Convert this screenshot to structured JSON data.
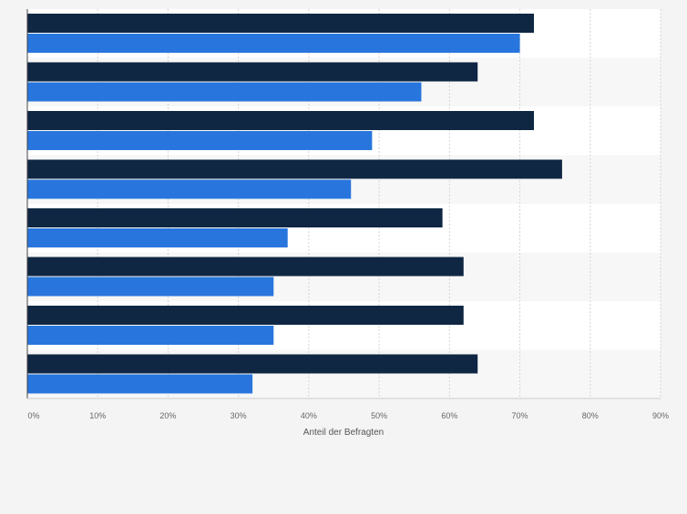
{
  "chart_data": {
    "type": "bar",
    "orientation": "horizontal",
    "categories": [
      "",
      "",
      "",
      "",
      "",
      "",
      "",
      ""
    ],
    "series": [
      {
        "name": "",
        "color": "#0f2743",
        "values": [
          72,
          64,
          72,
          76,
          59,
          62,
          62,
          64
        ]
      },
      {
        "name": "",
        "color": "#2876dd",
        "values": [
          70,
          56,
          49,
          46,
          37,
          35,
          35,
          32
        ]
      }
    ],
    "xlim": [
      0,
      90
    ],
    "xticks": [
      0,
      10,
      20,
      30,
      40,
      50,
      60,
      70,
      80,
      90
    ],
    "tick_suffix": "%",
    "xlabel": "Anteil der Befragten",
    "ylabel": "",
    "title": "",
    "grid": true,
    "legend": "none"
  }
}
